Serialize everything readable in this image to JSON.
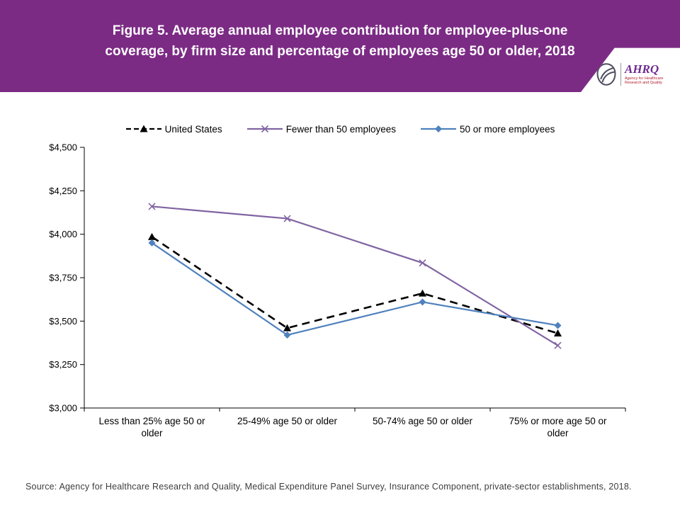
{
  "header": {
    "title_line1": "Figure 5. Average annual employee contribution for employee-plus-one",
    "title_line2": "coverage, by firm size and percentage of employees age 50 or older, 2018",
    "logo": {
      "name": "AHRQ",
      "subtext": "Agency for Healthcare Research and Quality"
    }
  },
  "source": "Source: Agency for Healthcare Research and Quality, Medical Expenditure Panel Survey, Insurance Component, private-sector establishments, 2018.",
  "colors": {
    "header_bg": "#7C2B85",
    "united_states_line": "#000000",
    "fewer_than_50_line": "#8064A2",
    "fifty_or_more_line": "#4F81BD",
    "axis": "#000000"
  },
  "chart_data": {
    "type": "line",
    "title": "Average annual employee contribution for employee-plus-one coverage, by firm size and percentage of employees age 50 or older, 2018",
    "categories": [
      "Less than 25% age 50 or older",
      "25-49% age 50 or older",
      "50-74% age 50 or older",
      "75% or more age 50 or older"
    ],
    "series": [
      {
        "name": "United States",
        "values": [
          3985,
          3460,
          3660,
          3430
        ],
        "color": "#000000",
        "dashed": true,
        "marker": "triangle"
      },
      {
        "name": "Fewer than 50 employees",
        "values": [
          4160,
          4090,
          3835,
          3360
        ],
        "color": "#8064A2",
        "dashed": false,
        "marker": "x"
      },
      {
        "name": "50 or more employees",
        "values": [
          3950,
          3420,
          3610,
          3475
        ],
        "color": "#4F81BD",
        "dashed": false,
        "marker": "diamond"
      }
    ],
    "ylim": [
      3000,
      4500
    ],
    "ytick_step": 250,
    "ytick_format": "$#,##0",
    "xlabel": "",
    "ylabel": "",
    "grid": false,
    "legend_position": "top"
  }
}
